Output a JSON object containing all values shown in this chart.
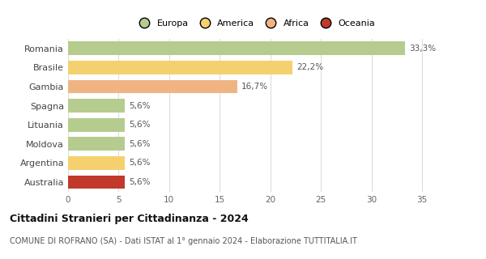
{
  "categories": [
    "Romania",
    "Brasile",
    "Gambia",
    "Spagna",
    "Lituania",
    "Moldova",
    "Argentina",
    "Australia"
  ],
  "values": [
    33.3,
    22.2,
    16.7,
    5.6,
    5.6,
    5.6,
    5.6,
    5.6
  ],
  "labels": [
    "33,3%",
    "22,2%",
    "16,7%",
    "5,6%",
    "5,6%",
    "5,6%",
    "5,6%",
    "5,6%"
  ],
  "colors": [
    "#b5cc8e",
    "#f5d06e",
    "#f0b482",
    "#b5cc8e",
    "#b5cc8e",
    "#b5cc8e",
    "#f5d06e",
    "#c0392b"
  ],
  "legend": [
    {
      "label": "Europa",
      "color": "#b5cc8e"
    },
    {
      "label": "America",
      "color": "#f5d06e"
    },
    {
      "label": "Africa",
      "color": "#f0b482"
    },
    {
      "label": "Oceania",
      "color": "#c0392b"
    }
  ],
  "xlim": [
    0,
    37
  ],
  "xticks": [
    0,
    5,
    10,
    15,
    20,
    25,
    30,
    35
  ],
  "title": "Cittadini Stranieri per Cittadinanza - 2024",
  "subtitle": "COMUNE DI ROFRANO (SA) - Dati ISTAT al 1° gennaio 2024 - Elaborazione TUTTITALIA.IT",
  "background_color": "#ffffff",
  "grid_color": "#dddddd"
}
